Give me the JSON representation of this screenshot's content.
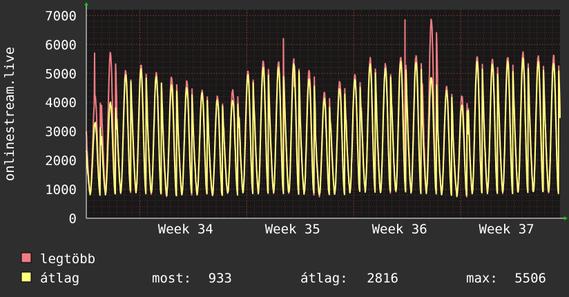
{
  "chart_data": {
    "type": "line",
    "ylabel": "onlinestream.live",
    "ylim": [
      0,
      7200
    ],
    "yticks": [
      0,
      1000,
      2000,
      3000,
      4000,
      5000,
      6000,
      7000
    ],
    "xticks": [
      "Week 34",
      "Week 35",
      "Week 36",
      "Week 37"
    ],
    "x_range_days": [
      0,
      31
    ],
    "grid": true,
    "series": [
      {
        "name": "legtöbb",
        "color": "#f07c82",
        "day_peaks": [
          4200,
          5700,
          5100,
          5300,
          5000,
          4900,
          4700,
          4400,
          4200,
          4400,
          5100,
          5400,
          5400,
          5500,
          5100,
          4300,
          4700,
          4900,
          5500,
          5300,
          5600,
          5600,
          6850,
          4500,
          4200,
          5600,
          5500,
          5600,
          5700,
          5600,
          5600,
          5200,
          4900,
          4700,
          5400
        ],
        "day_troughs": [
          850,
          850,
          900,
          900,
          850,
          800,
          850,
          850,
          800,
          850,
          900,
          900,
          900,
          850,
          850,
          800,
          850,
          900,
          950,
          900,
          900,
          900,
          900,
          850,
          800,
          850,
          900,
          900,
          900,
          900,
          900,
          850,
          850,
          800,
          900
        ],
        "spikes": [
          {
            "x": 0.55,
            "y": 5700
          },
          {
            "x": 12.9,
            "y": 6200
          },
          {
            "x": 20.85,
            "y": 6850
          },
          {
            "x": 13.6,
            "y": 4550
          }
        ]
      },
      {
        "name": "átlag",
        "color": "#ffff80",
        "day_peaks": [
          3300,
          4000,
          4950,
          5100,
          4900,
          4600,
          4500,
          4300,
          4100,
          4100,
          4900,
          5200,
          5200,
          5300,
          4800,
          4100,
          4500,
          4800,
          5300,
          5200,
          5400,
          5400,
          4900,
          4400,
          3900,
          5400,
          5300,
          5400,
          5500,
          5400,
          5400,
          5000,
          4700,
          4500,
          5200
        ],
        "day_troughs": [
          850,
          850,
          900,
          900,
          850,
          800,
          850,
          850,
          800,
          850,
          900,
          900,
          900,
          850,
          850,
          800,
          850,
          900,
          950,
          900,
          900,
          900,
          900,
          850,
          800,
          850,
          900,
          900,
          900,
          900,
          900,
          850,
          850,
          800,
          900
        ]
      }
    ]
  },
  "legend": {
    "items": [
      {
        "label": "legtöbb",
        "color": "#f07c82"
      },
      {
        "label": "átlag",
        "color": "#ffff80"
      }
    ],
    "stats": {
      "current_label": "most:",
      "current_value": "933",
      "average_label": "átlag:",
      "average_value": "2816",
      "max_label": "max:",
      "max_value": "5506"
    }
  }
}
